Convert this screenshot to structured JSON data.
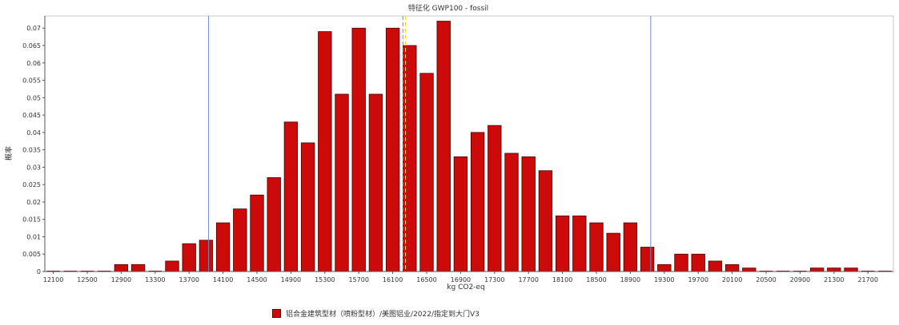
{
  "chart_data": {
    "type": "bar",
    "title": "特征化 GWP100 - fossil",
    "xlabel": "kg CO2-eq",
    "ylabel": "概率",
    "ylim": [
      0,
      0.0735
    ],
    "xlim": [
      12000,
      22000
    ],
    "bin_width": 200,
    "yticks": [
      0,
      0.005,
      0.01,
      0.015,
      0.02,
      0.025,
      0.03,
      0.035,
      0.04,
      0.045,
      0.05,
      0.055,
      0.06,
      0.065,
      0.07
    ],
    "ytick_labels": [
      "0",
      "0.005",
      "0.01",
      "0.015",
      "0.02",
      "0.025",
      "0.03",
      "0.035",
      "0.04",
      "0.045",
      "0.05",
      "0.055",
      "0.06",
      "0.065",
      "0.07"
    ],
    "xticks": [
      12100,
      12500,
      12900,
      13300,
      13700,
      14100,
      14500,
      14900,
      15300,
      15700,
      16100,
      16500,
      16900,
      17300,
      17700,
      18100,
      18500,
      18900,
      19300,
      19700,
      20100,
      20500,
      20900,
      21300,
      21700
    ],
    "xtick_labels": [
      "12100",
      "12500",
      "12900",
      "13300",
      "13700",
      "14100",
      "14500",
      "14900",
      "15300",
      "15700",
      "16100",
      "16500",
      "16900",
      "17300",
      "17700",
      "18100",
      "18500",
      "18900",
      "19300",
      "19700",
      "20100",
      "20500",
      "20900",
      "21300",
      "21700"
    ],
    "categories": [
      12100,
      12300,
      12500,
      12700,
      12900,
      13100,
      13300,
      13500,
      13700,
      13900,
      14100,
      14300,
      14500,
      14700,
      14900,
      15100,
      15300,
      15500,
      15700,
      15900,
      16100,
      16300,
      16500,
      16700,
      16900,
      17100,
      17300,
      17500,
      17700,
      17900,
      18100,
      18300,
      18500,
      18700,
      18900,
      19100,
      19300,
      19500,
      19700,
      19900,
      20100,
      20300,
      20500,
      20700,
      20900,
      21100,
      21300,
      21500,
      21700,
      21900
    ],
    "series": [
      {
        "name": "铝合金建筑型材（喷粉型材）/美图铝业/2022/指定到大门V3",
        "color": "#cc0a0a",
        "values": [
          0,
          0,
          0,
          0,
          0.002,
          0.002,
          0,
          0.003,
          0.008,
          0.009,
          0.014,
          0.018,
          0.022,
          0.027,
          0.043,
          0.037,
          0.069,
          0.051,
          0.07,
          0.051,
          0.07,
          0.065,
          0.057,
          0.072,
          0.033,
          0.04,
          0.042,
          0.034,
          0.033,
          0.029,
          0.016,
          0.016,
          0.014,
          0.011,
          0.014,
          0.007,
          0.002,
          0.005,
          0.005,
          0.003,
          0.002,
          0.001,
          0,
          0,
          0,
          0.001,
          0.001,
          0.001,
          0,
          0
        ]
      }
    ],
    "reference_lines": [
      {
        "x": 13930,
        "style": "solid",
        "color": "#6c8ebf"
      },
      {
        "x": 16220,
        "style": "dashed",
        "color": "#6c8ebf"
      },
      {
        "x": 16250,
        "style": "dashed",
        "color": "#f0e020"
      },
      {
        "x": 19140,
        "style": "solid",
        "color": "#6c8ebf"
      }
    ],
    "grid": false,
    "legend_position": "bottom-center"
  }
}
